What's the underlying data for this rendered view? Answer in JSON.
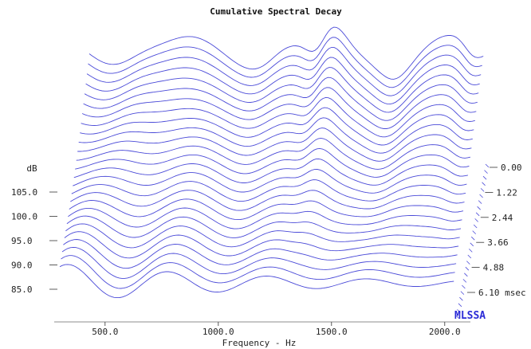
{
  "chart_data": {
    "type": "waterfall",
    "title": "Cumulative Spectral Decay",
    "xlabel": "Frequency - Hz",
    "x_ticks": [
      "500.0",
      "1000.0",
      "1500.0",
      "2000.0"
    ],
    "x_tick_values": [
      500,
      1000,
      1500,
      2000
    ],
    "xlim": [
      300,
      2050
    ],
    "y_unit": "dB",
    "y_ticks": [
      "105.0",
      "100.0",
      "95.0",
      "90.0",
      "85.0"
    ],
    "y_tick_values": [
      105,
      100,
      95,
      90,
      85
    ],
    "time_ticks": [
      "0.00",
      "1.22",
      "2.44",
      "3.66",
      "4.88",
      "6.10 msec"
    ],
    "time_tick_values": [
      0.0,
      1.22,
      2.44,
      3.66,
      4.88,
      6.1
    ],
    "slice_count": 26,
    "slice_time_step_ms": 0.244,
    "brand": "MLSSA",
    "series_color": "#4a4ad8"
  }
}
